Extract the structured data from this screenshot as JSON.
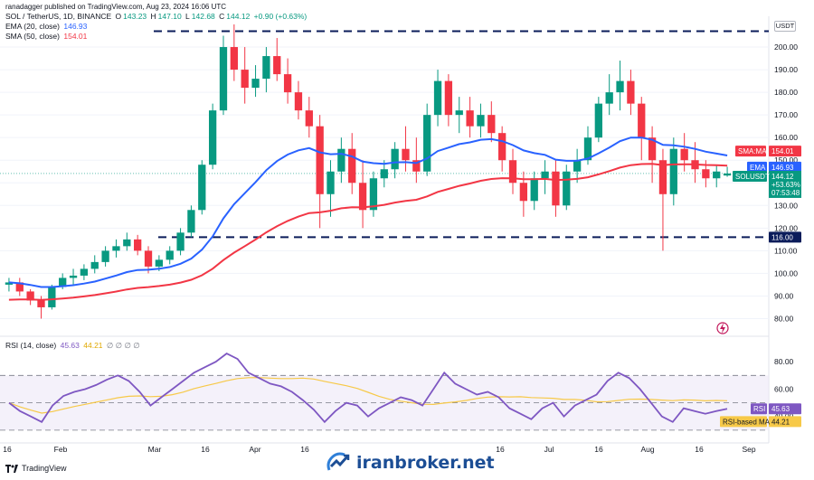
{
  "header": {
    "publisher": "ranadagger published on TradingView.com, Aug 23, 2024 16:06 UTC",
    "symbol": "SOL / TetherUS, 1D, BINANCE",
    "ohlc": {
      "o_label": "O",
      "o": "143.23",
      "h_label": "H",
      "h": "147.10",
      "l_label": "L",
      "l": "142.68",
      "c_label": "C",
      "c": "144.12",
      "chg": "+0.90 (+0.63%)"
    },
    "ema_label": "EMA (20, close)",
    "ema_value": "146.93",
    "sma_label": "SMA (50, close)",
    "sma_value": "154.01",
    "rsi_label": "RSI (14, close)",
    "rsi_value": "45.63",
    "rsi_ma_value": "44.21",
    "rsi_extra": "∅ ∅ ∅ ∅"
  },
  "currency": "USDT",
  "tags": {
    "sma": {
      "label": "SMA:MA",
      "value": "154.01"
    },
    "ema": {
      "label": "EMA",
      "value": "146.93"
    },
    "price": {
      "label": "SOLUSDT",
      "value": "144.12",
      "pct": "+53.63%",
      "countdown": "07:53:48"
    },
    "support": {
      "value": "116.00"
    },
    "rsi": {
      "label": "RSI",
      "value": "45.63"
    },
    "rsi_ma": {
      "label": "RSI-based MA",
      "value": "44.21"
    }
  },
  "footer": {
    "brand": "TradingView",
    "watermark": "iranbroker.net"
  },
  "colors": {
    "up": "#089981",
    "down": "#f23645",
    "ema": "#2962ff",
    "sma": "#f23645",
    "rsi": "#7e57c2",
    "rsi_ma": "#f7c948",
    "level": "#0b1c5a"
  },
  "chart_data": [
    {
      "type": "candlestick",
      "title": "SOL / TetherUS, 1D, BINANCE",
      "x_ticks": [
        "16",
        "Feb",
        "Mar",
        "16",
        "Apr",
        "16",
        "16",
        "Jul",
        "16",
        "Aug",
        "16",
        "Sep"
      ],
      "y_ticks": [
        80,
        90,
        100,
        110,
        120,
        130,
        140,
        150,
        160,
        170,
        180,
        190,
        200
      ],
      "ylim": [
        73,
        212
      ],
      "horizontal_levels": [
        116,
        207
      ],
      "series": [
        {
          "name": "EMA (20, close)",
          "last": 146.93
        },
        {
          "name": "SMA (50, close)",
          "last": 154.01
        }
      ],
      "ohlc_approx": [
        [
          95,
          98,
          92,
          96
        ],
        [
          96,
          98,
          90,
          92
        ],
        [
          92,
          93,
          86,
          88
        ],
        [
          88,
          90,
          80,
          85
        ],
        [
          85,
          95,
          84,
          94
        ],
        [
          94,
          100,
          93,
          98
        ],
        [
          98,
          102,
          95,
          99
        ],
        [
          99,
          104,
          97,
          102
        ],
        [
          102,
          108,
          100,
          105
        ],
        [
          105,
          112,
          103,
          110
        ],
        [
          110,
          115,
          107,
          112
        ],
        [
          112,
          118,
          110,
          115
        ],
        [
          115,
          117,
          108,
          110
        ],
        [
          110,
          112,
          100,
          103
        ],
        [
          103,
          108,
          101,
          106
        ],
        [
          106,
          112,
          104,
          110
        ],
        [
          110,
          120,
          108,
          118
        ],
        [
          118,
          130,
          116,
          128
        ],
        [
          128,
          150,
          126,
          148
        ],
        [
          148,
          175,
          146,
          172
        ],
        [
          172,
          205,
          170,
          200
        ],
        [
          200,
          210,
          185,
          190
        ],
        [
          190,
          200,
          175,
          182
        ],
        [
          182,
          192,
          178,
          186
        ],
        [
          186,
          200,
          180,
          196
        ],
        [
          196,
          204,
          185,
          188
        ],
        [
          188,
          195,
          175,
          180
        ],
        [
          180,
          185,
          168,
          172
        ],
        [
          172,
          178,
          160,
          165
        ],
        [
          165,
          170,
          120,
          135
        ],
        [
          135,
          150,
          125,
          145
        ],
        [
          145,
          160,
          140,
          155
        ],
        [
          155,
          162,
          135,
          140
        ],
        [
          140,
          150,
          120,
          128
        ],
        [
          128,
          145,
          125,
          142
        ],
        [
          142,
          150,
          138,
          146
        ],
        [
          146,
          158,
          142,
          155
        ],
        [
          155,
          165,
          145,
          150
        ],
        [
          150,
          160,
          140,
          145
        ],
        [
          145,
          175,
          143,
          170
        ],
        [
          170,
          190,
          165,
          185
        ],
        [
          185,
          188,
          165,
          170
        ],
        [
          170,
          178,
          162,
          172
        ],
        [
          172,
          178,
          160,
          165
        ],
        [
          165,
          175,
          160,
          170
        ],
        [
          170,
          176,
          158,
          162
        ],
        [
          162,
          165,
          145,
          150
        ],
        [
          150,
          155,
          135,
          140
        ],
        [
          140,
          145,
          125,
          132
        ],
        [
          132,
          145,
          128,
          142
        ],
        [
          142,
          150,
          135,
          145
        ],
        [
          145,
          150,
          125,
          130
        ],
        [
          130,
          148,
          128,
          145
        ],
        [
          145,
          155,
          140,
          150
        ],
        [
          150,
          165,
          148,
          160
        ],
        [
          160,
          178,
          158,
          175
        ],
        [
          175,
          188,
          170,
          180
        ],
        [
          180,
          194,
          172,
          185
        ],
        [
          185,
          190,
          170,
          175
        ],
        [
          175,
          178,
          150,
          160
        ],
        [
          160,
          165,
          140,
          150
        ],
        [
          150,
          155,
          110,
          135
        ],
        [
          135,
          160,
          130,
          155
        ],
        [
          155,
          162,
          145,
          150
        ],
        [
          150,
          158,
          140,
          146
        ],
        [
          146,
          150,
          138,
          142
        ],
        [
          142,
          148,
          138,
          145
        ],
        [
          143.23,
          147.1,
          142.68,
          144.12
        ]
      ]
    },
    {
      "type": "line",
      "title": "RSI (14, close)",
      "y_ticks": [
        40,
        60,
        80
      ],
      "bands": [
        30,
        50,
        70
      ],
      "series": [
        {
          "name": "RSI",
          "last": 45.63,
          "values": [
            50,
            44,
            40,
            36,
            48,
            55,
            58,
            60,
            63,
            67,
            70,
            66,
            58,
            48,
            54,
            60,
            66,
            72,
            76,
            80,
            86,
            82,
            72,
            68,
            64,
            62,
            58,
            52,
            45,
            36,
            44,
            50,
            48,
            40,
            46,
            50,
            54,
            52,
            48,
            60,
            72,
            64,
            60,
            56,
            58,
            54,
            46,
            42,
            38,
            46,
            50,
            40,
            48,
            52,
            56,
            66,
            72,
            68,
            60,
            50,
            40,
            36,
            46,
            44,
            42,
            44,
            45.63
          ]
        },
        {
          "name": "RSI-based MA",
          "last": 44.21
        }
      ]
    }
  ]
}
